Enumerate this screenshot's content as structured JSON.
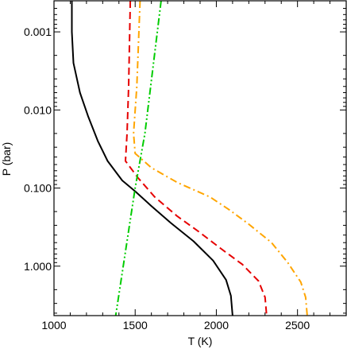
{
  "chart_data": {
    "type": "line",
    "xlabel": "T (K)",
    "ylabel": "P (bar)",
    "xlim": [
      1000,
      2800
    ],
    "ylim": [
      0.0004,
      4.3
    ],
    "y_scale": "log",
    "y_reversed": true,
    "grid": false,
    "legend": "none",
    "x_ticks": [
      1000,
      1500,
      2000,
      2500
    ],
    "x_tick_labels": [
      "1000",
      "1500",
      "2000",
      "2500"
    ],
    "y_ticks": [
      0.001,
      0.01,
      0.1,
      1
    ],
    "y_tick_labels": [
      "0.001",
      "0.010",
      "0.100",
      "1.000"
    ],
    "series": [
      {
        "color": "#000000",
        "dash": "solid",
        "points": [
          [
            1110,
            0.0004
          ],
          [
            1110,
            0.001
          ],
          [
            1120,
            0.0025
          ],
          [
            1160,
            0.006
          ],
          [
            1210,
            0.012
          ],
          [
            1270,
            0.025
          ],
          [
            1330,
            0.045
          ],
          [
            1420,
            0.08
          ],
          [
            1500,
            0.11
          ],
          [
            1600,
            0.17
          ],
          [
            1720,
            0.28
          ],
          [
            1860,
            0.48
          ],
          [
            1980,
            0.85
          ],
          [
            2060,
            1.5
          ],
          [
            2090,
            2.4
          ],
          [
            2100,
            4.3
          ]
        ]
      },
      {
        "color": "#e60000",
        "dash": "dashed",
        "points": [
          [
            1470,
            0.0004
          ],
          [
            1460,
            0.005
          ],
          [
            1450,
            0.02
          ],
          [
            1440,
            0.045
          ],
          [
            1520,
            0.075
          ],
          [
            1620,
            0.13
          ],
          [
            1760,
            0.23
          ],
          [
            1890,
            0.36
          ],
          [
            2030,
            0.6
          ],
          [
            2160,
            0.95
          ],
          [
            2260,
            1.55
          ],
          [
            2300,
            2.5
          ],
          [
            2310,
            4.3
          ]
        ]
      },
      {
        "color": "#ffa500",
        "dash": "dashdot",
        "points": [
          [
            1530,
            0.0004
          ],
          [
            1510,
            0.005
          ],
          [
            1490,
            0.02
          ],
          [
            1500,
            0.036
          ],
          [
            1600,
            0.055
          ],
          [
            1760,
            0.085
          ],
          [
            1960,
            0.13
          ],
          [
            2080,
            0.19
          ],
          [
            2200,
            0.29
          ],
          [
            2340,
            0.5
          ],
          [
            2440,
            0.9
          ],
          [
            2520,
            1.6
          ],
          [
            2550,
            2.5
          ],
          [
            2560,
            4.3
          ]
        ]
      },
      {
        "color": "#00cc00",
        "dash": "dashdotdot",
        "points": [
          [
            1660,
            0.0004
          ],
          [
            1560,
            0.02
          ],
          [
            1500,
            0.1
          ],
          [
            1380,
            4.3
          ]
        ]
      }
    ]
  }
}
